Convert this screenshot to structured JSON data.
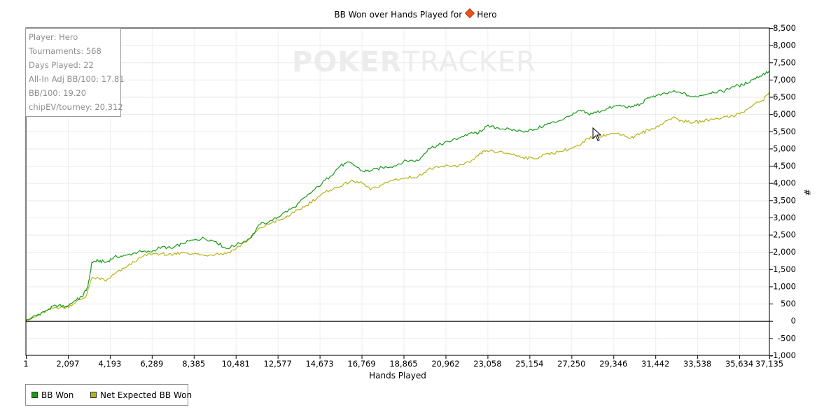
{
  "chart_data": {
    "type": "line",
    "title_prefix": "BB Won over Hands Played for",
    "title_player": "Hero",
    "xlabel": "Hands Played",
    "ylabel": "#",
    "xlim": [
      1,
      37135
    ],
    "ylim": [
      -1000,
      8500
    ],
    "x_ticks": [
      "1",
      "2,097",
      "4,193",
      "6,289",
      "8,385",
      "10,481",
      "12,577",
      "14,673",
      "16,769",
      "18,865",
      "20,962",
      "23,058",
      "25,154",
      "27,250",
      "29,346",
      "31,442",
      "33,538",
      "35,634",
      "37,135"
    ],
    "x_tick_values": [
      1,
      2097,
      4193,
      6289,
      8385,
      10481,
      12577,
      14673,
      16769,
      18865,
      20962,
      23058,
      25154,
      27250,
      29346,
      31442,
      33538,
      35634,
      37135
    ],
    "y_ticks": [
      "8,500",
      "8,000",
      "7,500",
      "7,000",
      "6,500",
      "6,000",
      "5,500",
      "5,000",
      "4,500",
      "4,000",
      "3,500",
      "3,000",
      "2,500",
      "2,000",
      "1,500",
      "1,000",
      "500",
      "0",
      "-500",
      "-1,000"
    ],
    "y_tick_values": [
      8500,
      8000,
      7500,
      7000,
      6500,
      6000,
      5500,
      5000,
      4500,
      4000,
      3500,
      3000,
      2500,
      2000,
      1500,
      1000,
      500,
      0,
      -500,
      -1000
    ],
    "grid": true,
    "legend_position": "bottom-left",
    "series": [
      {
        "name": "BB Won",
        "color": "#1a9a1a",
        "points": [
          [
            1,
            0
          ],
          [
            500,
            150
          ],
          [
            1000,
            300
          ],
          [
            1500,
            450
          ],
          [
            2000,
            420
          ],
          [
            2500,
            600
          ],
          [
            2800,
            700
          ],
          [
            3100,
            1000
          ],
          [
            3300,
            1700
          ],
          [
            3600,
            1750
          ],
          [
            4000,
            1700
          ],
          [
            4400,
            1850
          ],
          [
            5000,
            1900
          ],
          [
            5600,
            2000
          ],
          [
            6200,
            2000
          ],
          [
            6800,
            2150
          ],
          [
            7300,
            2100
          ],
          [
            7800,
            2250
          ],
          [
            8400,
            2350
          ],
          [
            8900,
            2400
          ],
          [
            9500,
            2300
          ],
          [
            10000,
            2100
          ],
          [
            10500,
            2200
          ],
          [
            11200,
            2400
          ],
          [
            11700,
            2800
          ],
          [
            12300,
            2900
          ],
          [
            12800,
            3100
          ],
          [
            13400,
            3300
          ],
          [
            14000,
            3600
          ],
          [
            14600,
            3900
          ],
          [
            15200,
            4200
          ],
          [
            15700,
            4500
          ],
          [
            16200,
            4600
          ],
          [
            16800,
            4350
          ],
          [
            17200,
            4350
          ],
          [
            17800,
            4450
          ],
          [
            18400,
            4500
          ],
          [
            19000,
            4650
          ],
          [
            19600,
            4650
          ],
          [
            20100,
            5000
          ],
          [
            20600,
            5100
          ],
          [
            21100,
            5200
          ],
          [
            21600,
            5300
          ],
          [
            22200,
            5450
          ],
          [
            22600,
            5450
          ],
          [
            23000,
            5650
          ],
          [
            23600,
            5600
          ],
          [
            24200,
            5550
          ],
          [
            24800,
            5500
          ],
          [
            25400,
            5550
          ],
          [
            26000,
            5700
          ],
          [
            26600,
            5800
          ],
          [
            27200,
            5950
          ],
          [
            27700,
            6100
          ],
          [
            28100,
            6000
          ],
          [
            28500,
            6050
          ],
          [
            29000,
            6150
          ],
          [
            29600,
            6250
          ],
          [
            30200,
            6200
          ],
          [
            30700,
            6300
          ],
          [
            31200,
            6500
          ],
          [
            31700,
            6550
          ],
          [
            32300,
            6650
          ],
          [
            32800,
            6600
          ],
          [
            33300,
            6500
          ],
          [
            33800,
            6550
          ],
          [
            34300,
            6650
          ],
          [
            34800,
            6650
          ],
          [
            35300,
            6800
          ],
          [
            35800,
            6850
          ],
          [
            36300,
            7000
          ],
          [
            36800,
            7150
          ],
          [
            37135,
            7250
          ]
        ]
      },
      {
        "name": "Net Expected BB Won",
        "color": "#b4b418",
        "points": [
          [
            1,
            0
          ],
          [
            500,
            120
          ],
          [
            1000,
            280
          ],
          [
            1500,
            400
          ],
          [
            2000,
            380
          ],
          [
            2500,
            550
          ],
          [
            3000,
            700
          ],
          [
            3300,
            1250
          ],
          [
            3600,
            1250
          ],
          [
            4000,
            1150
          ],
          [
            4400,
            1350
          ],
          [
            5000,
            1550
          ],
          [
            5600,
            1800
          ],
          [
            6200,
            1950
          ],
          [
            6800,
            1950
          ],
          [
            7300,
            1900
          ],
          [
            7800,
            2000
          ],
          [
            8400,
            1950
          ],
          [
            8900,
            1900
          ],
          [
            9500,
            1950
          ],
          [
            10000,
            1950
          ],
          [
            10500,
            2100
          ],
          [
            11200,
            2400
          ],
          [
            11700,
            2700
          ],
          [
            12300,
            2850
          ],
          [
            12800,
            2950
          ],
          [
            13400,
            3150
          ],
          [
            14000,
            3350
          ],
          [
            14600,
            3600
          ],
          [
            15200,
            3800
          ],
          [
            15700,
            3900
          ],
          [
            16200,
            4050
          ],
          [
            16800,
            4000
          ],
          [
            17200,
            3800
          ],
          [
            17800,
            3950
          ],
          [
            18400,
            4100
          ],
          [
            19000,
            4150
          ],
          [
            19600,
            4200
          ],
          [
            20100,
            4400
          ],
          [
            20600,
            4450
          ],
          [
            21100,
            4500
          ],
          [
            21600,
            4500
          ],
          [
            22200,
            4600
          ],
          [
            22600,
            4800
          ],
          [
            23000,
            4950
          ],
          [
            23600,
            4900
          ],
          [
            24200,
            4850
          ],
          [
            24800,
            4750
          ],
          [
            25400,
            4700
          ],
          [
            26000,
            4850
          ],
          [
            26600,
            4900
          ],
          [
            27200,
            5000
          ],
          [
            27700,
            5100
          ],
          [
            28100,
            5300
          ],
          [
            28500,
            5350
          ],
          [
            29000,
            5400
          ],
          [
            29600,
            5450
          ],
          [
            30200,
            5300
          ],
          [
            30700,
            5450
          ],
          [
            31200,
            5550
          ],
          [
            31700,
            5700
          ],
          [
            32300,
            5900
          ],
          [
            32800,
            5800
          ],
          [
            33300,
            5750
          ],
          [
            33800,
            5800
          ],
          [
            34300,
            5850
          ],
          [
            34800,
            5900
          ],
          [
            35300,
            5950
          ],
          [
            35800,
            6050
          ],
          [
            36300,
            6250
          ],
          [
            36800,
            6400
          ],
          [
            37135,
            6650
          ]
        ]
      }
    ]
  },
  "stats": {
    "player": "Player: Hero",
    "tournaments": "Tournaments: 568",
    "days_played": "Days Played: 22",
    "allin_adj": "All-In Adj BB/100: 17.81",
    "bb100": "BB/100: 19.20",
    "chipev": "chipEV/tourney: 20,312"
  },
  "watermark": {
    "poker": "POKER",
    "tracker": "TRACKER"
  },
  "legend": {
    "bb_won": "BB Won",
    "net_expected": "Net Expected BB Won",
    "bb_won_color": "#1a9a1a",
    "net_expected_color": "#b4b418"
  }
}
